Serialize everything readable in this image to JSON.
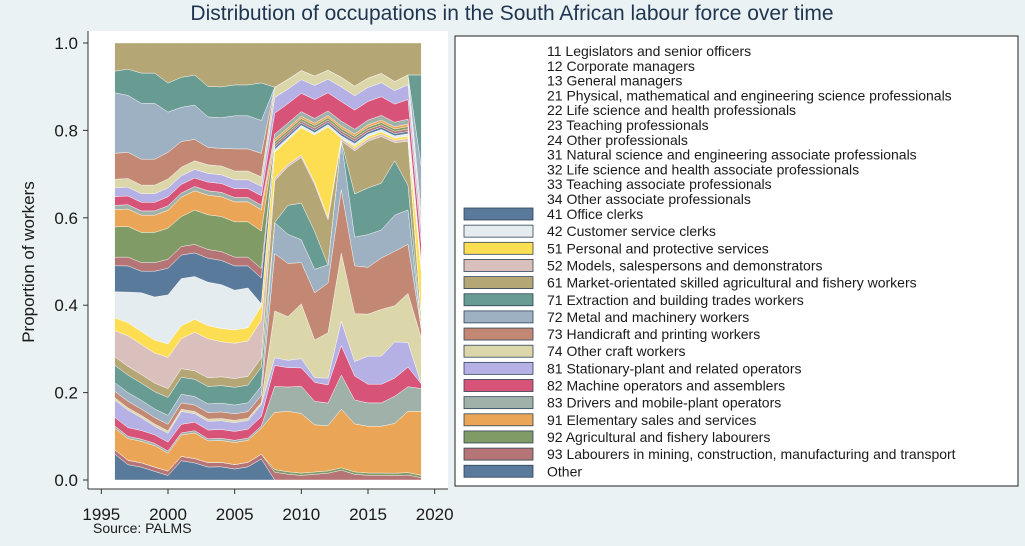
{
  "chart_data": {
    "type": "area",
    "stacked": true,
    "title": "Distribution of occupations in the South African labour force over time",
    "xlabel": "",
    "ylabel": "Proportion of workers",
    "note": "Source: PALMS",
    "xlim": [
      1994,
      2021
    ],
    "ylim": [
      0,
      1.0
    ],
    "x_ticks": [
      "1995",
      "2000",
      "2005",
      "2010",
      "2015",
      "2020"
    ],
    "y_ticks": [
      "0.0",
      "0.2",
      "0.4",
      "0.6",
      "0.8",
      "1.0"
    ],
    "legend_position": "right",
    "x": [
      1996,
      1997,
      1998,
      1999,
      2000,
      2001,
      2002,
      2003,
      2004,
      2005,
      2006,
      2007,
      2008,
      2009,
      2010,
      2011,
      2012,
      2013,
      2014,
      2015,
      2016,
      2017,
      2018,
      2019
    ],
    "series": [
      {
        "name": "Other",
        "color": "#3d6389",
        "values": [
          0.06,
          0.035,
          0.03,
          0.02,
          0.01,
          0.045,
          0.04,
          0.03,
          0.03,
          0.025,
          0.03,
          0.045,
          0,
          0,
          0,
          0,
          0,
          0,
          0,
          0,
          0,
          0,
          0,
          0
        ]
      },
      {
        "name": "93 Labourers in mining, construction, manufacturing and transport",
        "color": "#a85d5f",
        "values": [
          0.01,
          0.01,
          0.01,
          0.01,
          0.01,
          0.01,
          0.01,
          0.01,
          0.01,
          0.01,
          0.01,
          0.01,
          0.015,
          0.012,
          0.01,
          0.012,
          0.015,
          0.02,
          0.012,
          0.01,
          0.01,
          0.01,
          0.01,
          0.005
        ]
      },
      {
        "name": "92 Agricultural and fishery labourers",
        "color": "#6a8a4a",
        "values": [
          0,
          0,
          0,
          0,
          0,
          0,
          0,
          0,
          0,
          0,
          0,
          0,
          0.005,
          0.005,
          0.005,
          0.005,
          0.005,
          0.005,
          0.005,
          0.005,
          0.005,
          0.005,
          0.005,
          0.005
        ]
      },
      {
        "name": "91 Elementary sales and services",
        "color": "#e8953a",
        "values": [
          0.05,
          0.05,
          0.05,
          0.05,
          0.04,
          0.05,
          0.06,
          0.05,
          0.05,
          0.05,
          0.05,
          0.055,
          0.11,
          0.125,
          0.13,
          0.1,
          0.1,
          0.12,
          0.1,
          0.1,
          0.1,
          0.11,
          0.125,
          0.14
        ]
      },
      {
        "name": "83 Drivers and mobile-plant operators",
        "color": "#8fa39b",
        "values": [
          0.005,
          0.005,
          0.005,
          0.005,
          0.005,
          0.005,
          0.005,
          0.005,
          0.005,
          0.005,
          0.005,
          0.005,
          0.05,
          0.05,
          0.06,
          0.05,
          0.05,
          0.07,
          0.05,
          0.05,
          0.05,
          0.06,
          0.05,
          0.05
        ]
      },
      {
        "name": "82 Machine operators and assemblers",
        "color": "#d03560",
        "values": [
          0.02,
          0.02,
          0.02,
          0.02,
          0.02,
          0.02,
          0.02,
          0.02,
          0.02,
          0.02,
          0.02,
          0.02,
          0.04,
          0.04,
          0.04,
          0.04,
          0.04,
          0.06,
          0.05,
          0.04,
          0.04,
          0.04,
          0.04,
          0.01
        ]
      },
      {
        "name": "81 Stationary-plant and related operators",
        "color": "#a9a3e0",
        "values": [
          0.04,
          0.04,
          0.03,
          0.02,
          0.02,
          0.03,
          0.02,
          0.02,
          0.02,
          0.02,
          0.02,
          0.025,
          0.015,
          0.015,
          0.02,
          0.01,
          0.015,
          0.05,
          0.03,
          0.06,
          0.06,
          0.08,
          0.05,
          0
        ]
      },
      {
        "name": "74 Other craft workers",
        "color": "#d6cf9c",
        "values": [
          0.005,
          0.005,
          0.005,
          0.005,
          0.005,
          0.005,
          0.005,
          0.005,
          0.005,
          0.005,
          0.005,
          0.005,
          0.09,
          0.09,
          0.12,
          0.08,
          0.1,
          0.14,
          0.1,
          0.09,
          0.1,
          0.08,
          0.1,
          0.1
        ]
      },
      {
        "name": "73 Handicraft and printing workers",
        "color": "#b8735a",
        "values": [
          0.015,
          0.015,
          0.015,
          0.015,
          0.015,
          0.015,
          0.015,
          0.015,
          0.015,
          0.015,
          0.015,
          0.015,
          0.11,
          0.11,
          0.09,
          0.1,
          0.11,
          0.13,
          0.1,
          0.1,
          0.11,
          0.12,
          0.1,
          0.02
        ]
      },
      {
        "name": "72 Metal and machinery workers",
        "color": "#8ca3b8",
        "values": [
          0.02,
          0.02,
          0.02,
          0.02,
          0.02,
          0.02,
          0.02,
          0.02,
          0.02,
          0.02,
          0.02,
          0.02,
          0.06,
          0.06,
          0.05,
          0.05,
          0.04,
          0.1,
          0.06,
          0.07,
          0.06,
          0.08,
          0.07,
          0
        ]
      },
      {
        "name": "71 Extraction and building trades workers",
        "color": "#4e8a7f",
        "values": [
          0.04,
          0.04,
          0.04,
          0.04,
          0.04,
          0.04,
          0.04,
          0.04,
          0.04,
          0.04,
          0.04,
          0.04,
          0,
          0.06,
          0.08,
          0.08,
          0,
          0,
          0.09,
          0.1,
          0.1,
          0.12,
          0.05,
          0
        ]
      },
      {
        "name": "61 Market-orientated skilled agricultural and fishery workers",
        "color": "#a8965e",
        "values": [
          0.02,
          0.02,
          0.02,
          0.02,
          0.02,
          0.02,
          0.02,
          0.02,
          0.02,
          0.02,
          0.02,
          0.02,
          0.08,
          0.08,
          0.1,
          0.1,
          0.1,
          0,
          0.09,
          0.1,
          0.1,
          0.04,
          0.09,
          0.02
        ]
      },
      {
        "name": "52 Models, salespersons and demonstrators",
        "color": "#d3b5b0",
        "values": [
          0.06,
          0.07,
          0.07,
          0.07,
          0.07,
          0.07,
          0.09,
          0.09,
          0.08,
          0.08,
          0.08,
          0.08,
          0.005,
          0.005,
          0.005,
          0.005,
          0.005,
          0.005,
          0.005,
          0.005,
          0.005,
          0.005,
          0.005,
          0.005
        ]
      },
      {
        "name": "51 Personal and protective services",
        "color": "#fdd835",
        "values": [
          0.03,
          0.03,
          0.03,
          0.03,
          0.03,
          0.03,
          0.03,
          0.03,
          0.03,
          0.03,
          0.03,
          0.03,
          0.05,
          0.05,
          0.06,
          0.1,
          0.2,
          0,
          0.005,
          0.005,
          0.005,
          0.005,
          0.005,
          0.1
        ]
      },
      {
        "name": "42 Customer service clerks",
        "color": "#dfe9ec",
        "values": [
          0.06,
          0.07,
          0.09,
          0.1,
          0.11,
          0.11,
          0.1,
          0.1,
          0.1,
          0.09,
          0.09,
          0.005,
          0.005,
          0.005,
          0.005,
          0.005,
          0.005,
          0.005,
          0.005,
          0.005,
          0.005,
          0.005,
          0.005,
          0
        ]
      },
      {
        "name": "41 Office clerks",
        "color": "#3d6389",
        "values": [
          0.06,
          0.06,
          0.05,
          0.06,
          0.06,
          0.055,
          0.055,
          0.055,
          0.055,
          0.055,
          0.05,
          0.055,
          0.005,
          0.005,
          0.005,
          0.005,
          0.005,
          0.005,
          0.005,
          0.005,
          0.005,
          0.005,
          0.005,
          0.005
        ]
      },
      {
        "name": "34 Other associate professionals",
        "color": "#a85d5f",
        "values": [
          0.02,
          0.02,
          0.02,
          0.02,
          0.02,
          0.02,
          0.02,
          0.02,
          0.02,
          0.02,
          0.02,
          0.02,
          0.005,
          0.005,
          0.005,
          0.005,
          0.005,
          0.005,
          0.005,
          0.005,
          0.005,
          0.005,
          0.005,
          0
        ]
      },
      {
        "name": "33 Teaching associate professionals",
        "color": "#6a8a4a",
        "values": [
          0.07,
          0.07,
          0.07,
          0.07,
          0.07,
          0.07,
          0.08,
          0.08,
          0.08,
          0.08,
          0.08,
          0.08,
          0.005,
          0.005,
          0.005,
          0.005,
          0.005,
          0.005,
          0.005,
          0.005,
          0.005,
          0.005,
          0.005,
          0.005
        ]
      },
      {
        "name": "32 Life science and health associate professionals",
        "color": "#e8953a",
        "values": [
          0.04,
          0.04,
          0.04,
          0.04,
          0.04,
          0.045,
          0.045,
          0.045,
          0.045,
          0.045,
          0.045,
          0.045,
          0.005,
          0.005,
          0.005,
          0.005,
          0.005,
          0.005,
          0.005,
          0.005,
          0.005,
          0.005,
          0.005,
          0
        ]
      },
      {
        "name": "31 Natural science and engineering associate professionals",
        "color": "#8fa39b",
        "values": [
          0.01,
          0.01,
          0.01,
          0.01,
          0.01,
          0.01,
          0.01,
          0.01,
          0.01,
          0.01,
          0.01,
          0.01,
          0.01,
          0.01,
          0.01,
          0.01,
          0.01,
          0.01,
          0.01,
          0.01,
          0.01,
          0.01,
          0.01,
          0.01
        ]
      },
      {
        "name": "24 Other professionals",
        "color": "#d03560",
        "values": [
          0.02,
          0.02,
          0.02,
          0.02,
          0.02,
          0.02,
          0.02,
          0.02,
          0.02,
          0.02,
          0.02,
          0.02,
          0.04,
          0.04,
          0.04,
          0.04,
          0.04,
          0.04,
          0.04,
          0.04,
          0.04,
          0.04,
          0.04,
          0.04
        ]
      },
      {
        "name": "23 Teaching professionals",
        "color": "#a9a3e0",
        "values": [
          0.02,
          0.02,
          0.02,
          0.02,
          0.02,
          0.02,
          0.02,
          0.02,
          0.02,
          0.02,
          0.02,
          0.02,
          0.03,
          0.03,
          0.03,
          0.03,
          0.03,
          0.03,
          0.03,
          0.03,
          0.03,
          0.03,
          0.03,
          0.03
        ]
      },
      {
        "name": "22 Life science and health professionals",
        "color": "#d6cf9c",
        "values": [
          0.02,
          0.02,
          0.02,
          0.02,
          0.02,
          0.02,
          0.02,
          0.02,
          0.02,
          0.02,
          0.02,
          0.02,
          0.02,
          0.02,
          0.02,
          0.02,
          0.02,
          0.02,
          0.02,
          0.02,
          0.02,
          0.02,
          0.02,
          0.02
        ]
      },
      {
        "name": "21 Physical, mathematical and engineering science professionals",
        "color": "#b8735a",
        "values": [
          0.06,
          0.06,
          0.06,
          0.06,
          0.06,
          0.06,
          0.05,
          0.04,
          0.04,
          0.05,
          0.05,
          0.05,
          0,
          0,
          0,
          0,
          0,
          0,
          0,
          0,
          0,
          0,
          0,
          0.02
        ]
      },
      {
        "name": "13 General managers",
        "color": "#8ca3b8",
        "values": [
          0.14,
          0.13,
          0.13,
          0.13,
          0.09,
          0.08,
          0.08,
          0.07,
          0.07,
          0.075,
          0.075,
          0.07,
          0,
          0,
          0,
          0,
          0,
          0,
          0,
          0,
          0,
          0,
          0,
          0.1
        ]
      },
      {
        "name": "12 Corporate managers",
        "color": "#4e8a7f",
        "values": [
          0.05,
          0.06,
          0.07,
          0.07,
          0.065,
          0.07,
          0.07,
          0.07,
          0.07,
          0.07,
          0.07,
          0.08,
          0,
          0,
          0,
          0,
          0,
          0,
          0,
          0,
          0,
          0,
          0,
          0.2
        ]
      },
      {
        "name": "11 Legislators and senior officers",
        "color": "#a8965e",
        "values": [
          0.065,
          0.06,
          0.07,
          0.07,
          0.09,
          0.08,
          0.075,
          0.1,
          0.1,
          0.095,
          0.095,
          0.085,
          0.085,
          0.075,
          0.06,
          0.07,
          0.06,
          0.07,
          0.09,
          0.075,
          0.065,
          0.085,
          0.065,
          0.07
        ]
      }
    ],
    "legend_labels": [
      "11 Legislators and senior officers",
      "12 Corporate managers",
      "13 General managers",
      "21 Physical, mathematical and engineering science professionals",
      "22 Life science and health professionals",
      "23 Teaching professionals",
      "24 Other professionals",
      "31 Natural science and engineering associate professionals",
      "32 Life science and health associate professionals",
      "33 Teaching associate professionals",
      "34 Other associate professionals",
      "41 Office clerks",
      "42 Customer service clerks",
      "51 Personal and protective services",
      "52 Models, salespersons and demonstrators",
      "61 Market-orientated skilled agricultural and fishery workers",
      "71 Extraction and building trades workers",
      "72 Metal and machinery workers",
      "73 Handicraft and printing workers",
      "74 Other craft workers",
      "81 Stationary-plant and related operators",
      "82 Machine operators and assemblers",
      "83 Drivers and mobile-plant operators",
      "91 Elementary sales and services",
      "92 Agricultural and fishery labourers",
      "93 Labourers in mining, construction, manufacturing and transport",
      "Other"
    ],
    "legend_colors": [
      "",
      "",
      "",
      "",
      "",
      "",
      "",
      "",
      "",
      "",
      "",
      "#3d6389",
      "#dfe9ec",
      "#fdd835",
      "#d3b5b0",
      "#a8965e",
      "#4e8a7f",
      "#8ca3b8",
      "#b8735a",
      "#d6cf9c",
      "#a9a3e0",
      "#d03560",
      "#8fa39b",
      "#e8953a",
      "#6a8a4a",
      "#a85d5f",
      "#3d6389"
    ]
  }
}
